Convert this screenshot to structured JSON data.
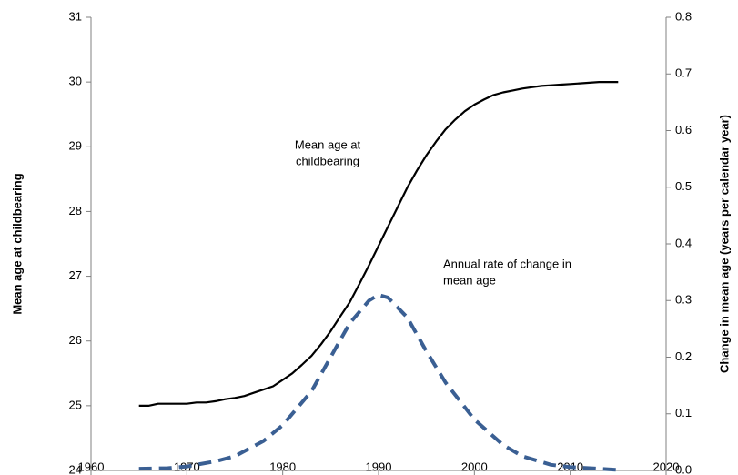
{
  "chart_data": {
    "type": "line",
    "y_label": "Mean age at childbearing",
    "y2_label": "Change in mean age  (years per calendar year)",
    "xlim": [
      1960,
      2020
    ],
    "xticks": [
      1960,
      1970,
      1980,
      1990,
      2000,
      2010,
      2020
    ],
    "ylim": [
      24,
      31
    ],
    "yticks": [
      24,
      25,
      26,
      27,
      28,
      29,
      30,
      31
    ],
    "y2lim": [
      0,
      0.8
    ],
    "y2ticks": [
      {
        "value": 0,
        "label": "0.0"
      },
      0.1,
      0.2,
      0.3,
      0.4,
      0.5,
      0.6,
      0.7,
      0.8
    ],
    "grid": false,
    "series": [
      {
        "name": "Mean age at childbearing",
        "color": "#000000",
        "dashed": false,
        "x": [
          1965,
          1966,
          1967,
          1968,
          1969,
          1970,
          1971,
          1972,
          1973,
          1974,
          1975,
          1976,
          1977,
          1978,
          1979,
          1980,
          1981,
          1982,
          1983,
          1984,
          1985,
          1986,
          1987,
          1988,
          1989,
          1990,
          1991,
          1992,
          1993,
          1994,
          1995,
          1996,
          1997,
          1998,
          1999,
          2000,
          2001,
          2002,
          2003,
          2004,
          2005,
          2006,
          2007,
          2008,
          2009,
          2010,
          2011,
          2012,
          2013,
          2014,
          2015
        ],
        "values": [
          25.0,
          25.0,
          25.03,
          25.03,
          25.03,
          25.03,
          25.05,
          25.05,
          25.07,
          25.1,
          25.12,
          25.15,
          25.2,
          25.25,
          25.3,
          25.4,
          25.5,
          25.63,
          25.77,
          25.95,
          26.15,
          26.38,
          26.6,
          26.88,
          27.17,
          27.47,
          27.77,
          28.07,
          28.37,
          28.63,
          28.87,
          29.08,
          29.27,
          29.42,
          29.55,
          29.65,
          29.73,
          29.8,
          29.84,
          29.87,
          29.9,
          29.92,
          29.94,
          29.95,
          29.96,
          29.97,
          29.98,
          29.99,
          30.0,
          30.0,
          30.0
        ]
      },
      {
        "name": "Annual rate of change in mean age",
        "color": "#3a5f93",
        "dashed": true,
        "axis": "y2",
        "x": [
          1965,
          1968,
          1970,
          1973,
          1975,
          1978,
          1980,
          1983,
          1985,
          1987,
          1989,
          1990,
          1991,
          1993,
          1995,
          1997,
          2000,
          2003,
          2005,
          2008,
          2010,
          2013,
          2015
        ],
        "values": [
          0.003,
          0.004,
          0.007,
          0.016,
          0.025,
          0.052,
          0.08,
          0.14,
          0.2,
          0.26,
          0.3,
          0.31,
          0.305,
          0.27,
          0.21,
          0.155,
          0.09,
          0.045,
          0.025,
          0.01,
          0.006,
          0.003,
          0.001
        ]
      }
    ],
    "annotations": [
      {
        "lines": [
          "Mean age at",
          "childbearing"
        ]
      },
      {
        "lines": [
          "Annual rate of change in",
          "mean age"
        ]
      }
    ]
  }
}
